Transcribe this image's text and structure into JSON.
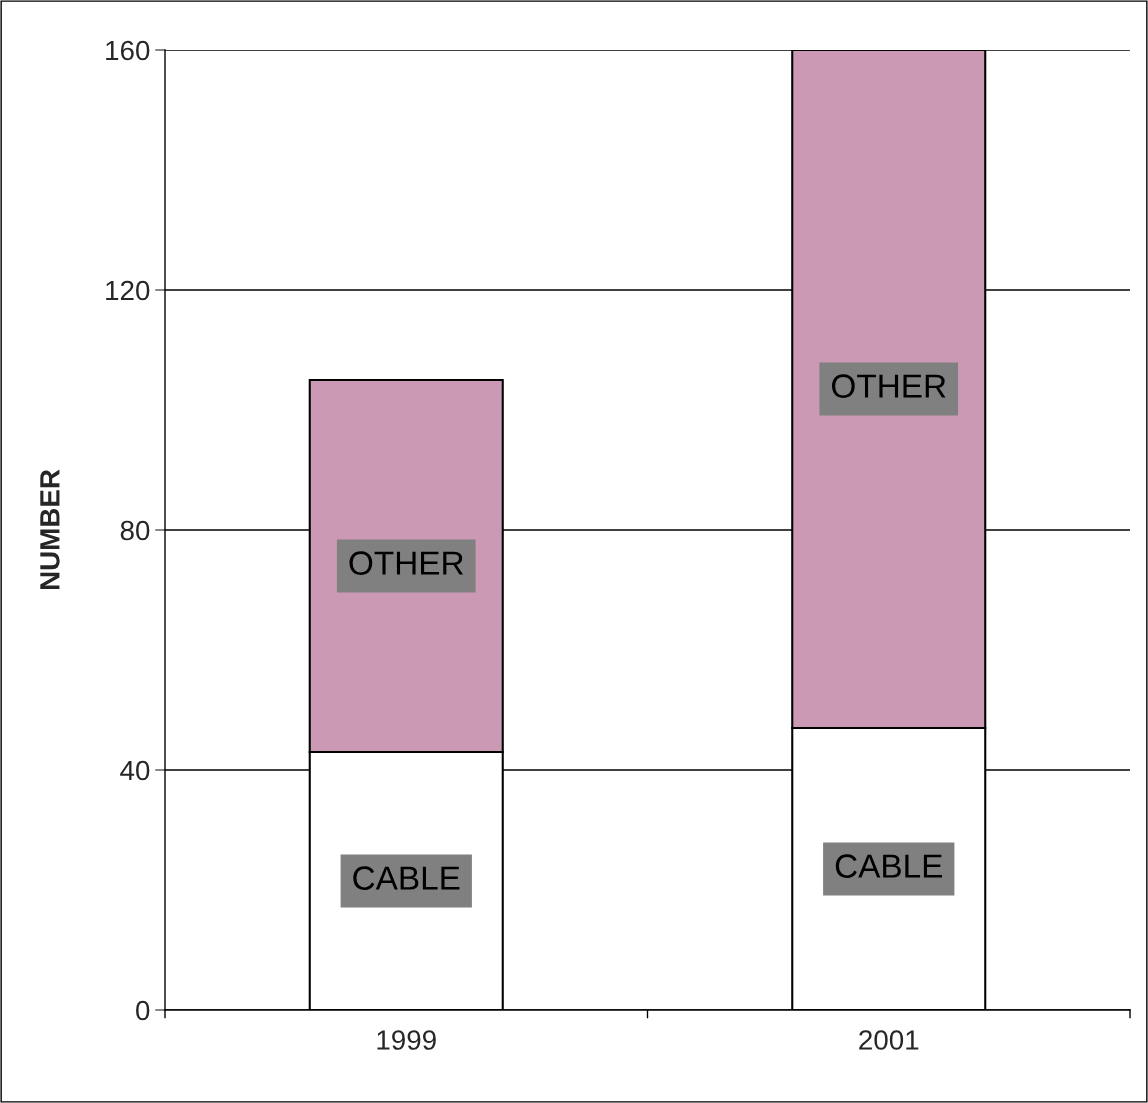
{
  "chart_data": {
    "type": "bar",
    "stacked": true,
    "ylabel": "NUMBER",
    "categories": [
      "1999",
      "2001"
    ],
    "series": [
      {
        "name": "CABLE",
        "color": "#ffffff",
        "values": [
          43,
          47
        ]
      },
      {
        "name": "OTHER",
        "color": "#cc99b4",
        "values": [
          62,
          113
        ]
      }
    ],
    "ylim": [
      0,
      160
    ],
    "yticks": [
      0,
      40,
      80,
      120,
      160
    ],
    "grid": "y",
    "legend": false
  }
}
